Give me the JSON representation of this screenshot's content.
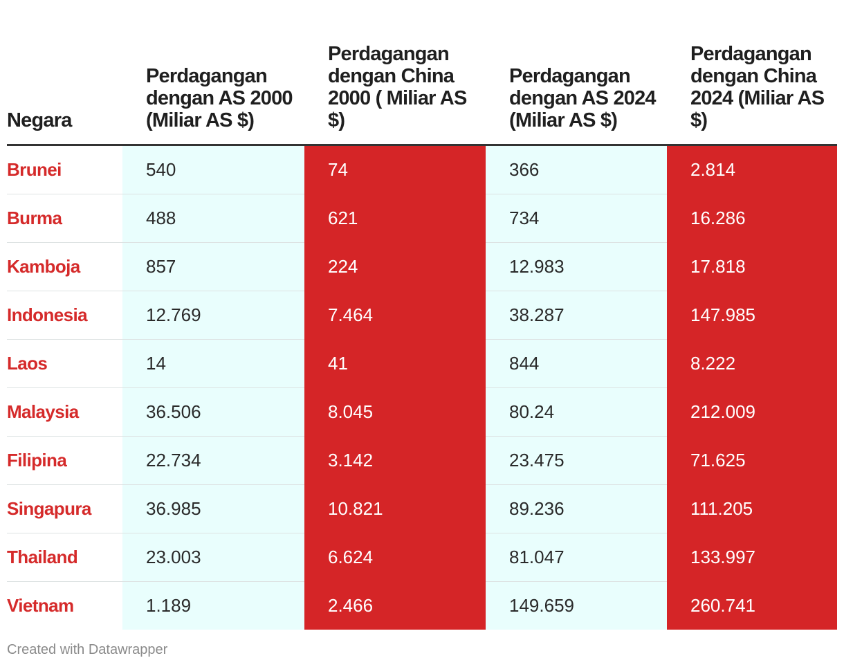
{
  "chart_data": {
    "type": "table",
    "columns": [
      "Negara",
      "Perdagangan dengan AS 2000 (Miliar AS $)",
      "Perdagangan dengan China 2000 ( Miliar AS $)",
      "Perdagangan dengan AS 2024 (Miliar AS $)",
      "Perdagangan dengan China 2024 (Miliar AS $)"
    ],
    "rows": [
      {
        "country": "Brunei",
        "values": [
          "540",
          "74",
          "366",
          "2.814"
        ]
      },
      {
        "country": "Burma",
        "values": [
          "488",
          "621",
          "734",
          "16.286"
        ]
      },
      {
        "country": "Kamboja",
        "values": [
          "857",
          "224",
          "12.983",
          "17.818"
        ]
      },
      {
        "country": "Indonesia",
        "values": [
          "12.769",
          "7.464",
          "38.287",
          "147.985"
        ]
      },
      {
        "country": "Laos",
        "values": [
          "14",
          "41",
          "844",
          "8.222"
        ]
      },
      {
        "country": "Malaysia",
        "values": [
          "36.506",
          "8.045",
          "80.24",
          "212.009"
        ]
      },
      {
        "country": "Filipina",
        "values": [
          "22.734",
          "3.142",
          "23.475",
          "71.625"
        ]
      },
      {
        "country": "Singapura",
        "values": [
          "36.985",
          "10.821",
          "89.236",
          "111.205"
        ]
      },
      {
        "country": "Thailand",
        "values": [
          "23.003",
          "6.624",
          "81.047",
          "133.997"
        ]
      },
      {
        "country": "Vietnam",
        "values": [
          "1.189",
          "2.466",
          "149.659",
          "260.741"
        ]
      }
    ],
    "colors": {
      "us_column_bg": "#e9fefd",
      "china_column_bg": "#d52527",
      "country_text": "#d52a2a"
    }
  },
  "footer": "Created with Datawrapper"
}
